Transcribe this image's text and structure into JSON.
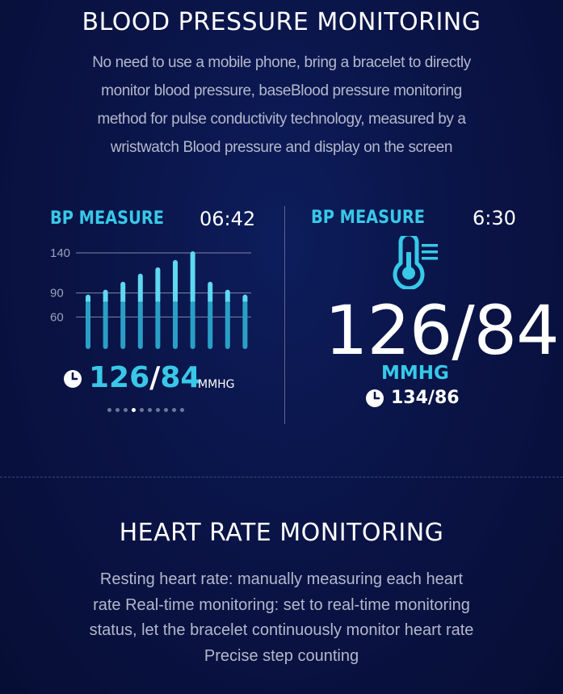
{
  "section1": {
    "title": "BLOOD PRESSURE MONITORING",
    "desc_lines": [
      "No need to use a mobile phone, bring a bracelet to directly",
      "monitor blood pressure, baseBlood pressure monitoring",
      "method for pulse conductivity technology, measured by a",
      "wristwatch Blood pressure and display on the screen"
    ]
  },
  "left_panel": {
    "label": "BP MEASURE",
    "time": "06:42",
    "reading_sys": "126",
    "reading_slash": "/",
    "reading_dia": "84",
    "unit": "MMHG",
    "page_dots": 10,
    "active_dot": 3
  },
  "right_panel": {
    "label": "BP MEASURE",
    "time": "6:30",
    "reading": "126/84",
    "unit": "MMHG",
    "previous": "134/86"
  },
  "section2": {
    "title": "HEART RATE MONITORING",
    "desc_lines": [
      "Resting heart rate: manually measuring each heart",
      "rate Real-time monitoring: set to real-time monitoring",
      "status, let the bracelet continuously monitor heart rate",
      "Precise step counting"
    ]
  },
  "colors": {
    "accent": "#38c8e8",
    "bar_light": "#5fd8f2",
    "bar_dark": "#2a9fc6"
  },
  "chart_data": {
    "type": "bar",
    "title": "",
    "xlabel": "",
    "ylabel": "",
    "y_ticks": [
      "140",
      "90",
      "60"
    ],
    "y_tick_values": [
      140,
      90,
      60
    ],
    "ylim": [
      20,
      140
    ],
    "values": [
      88,
      94,
      104,
      114,
      122,
      131,
      142,
      104,
      94,
      88
    ]
  }
}
